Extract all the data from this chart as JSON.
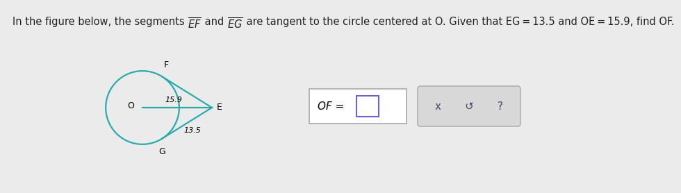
{
  "bg_color": "#ebebeb",
  "circle_color": "#2aabab",
  "line_color": "#2aabab",
  "text_color": "#222222",
  "title_part1": "In the figure below, the segments ",
  "title_ef": "EF",
  "title_and": " and ",
  "title_eg": "EG",
  "title_part2": " are tangent to the circle centered at O. Given that EG = 13.5 and OE = 15.9, find OF.",
  "of_label": "OF = ",
  "buttons": [
    "x",
    "↺",
    "?"
  ],
  "oe_label": "15.9",
  "eg_label": "13.5",
  "label_O": "O",
  "label_E": "E",
  "label_F": "F",
  "label_G": "G",
  "font_size_title": 10.5,
  "font_size_diagram": 9,
  "font_size_nums": 8,
  "font_size_of": 11,
  "font_size_btn": 11
}
